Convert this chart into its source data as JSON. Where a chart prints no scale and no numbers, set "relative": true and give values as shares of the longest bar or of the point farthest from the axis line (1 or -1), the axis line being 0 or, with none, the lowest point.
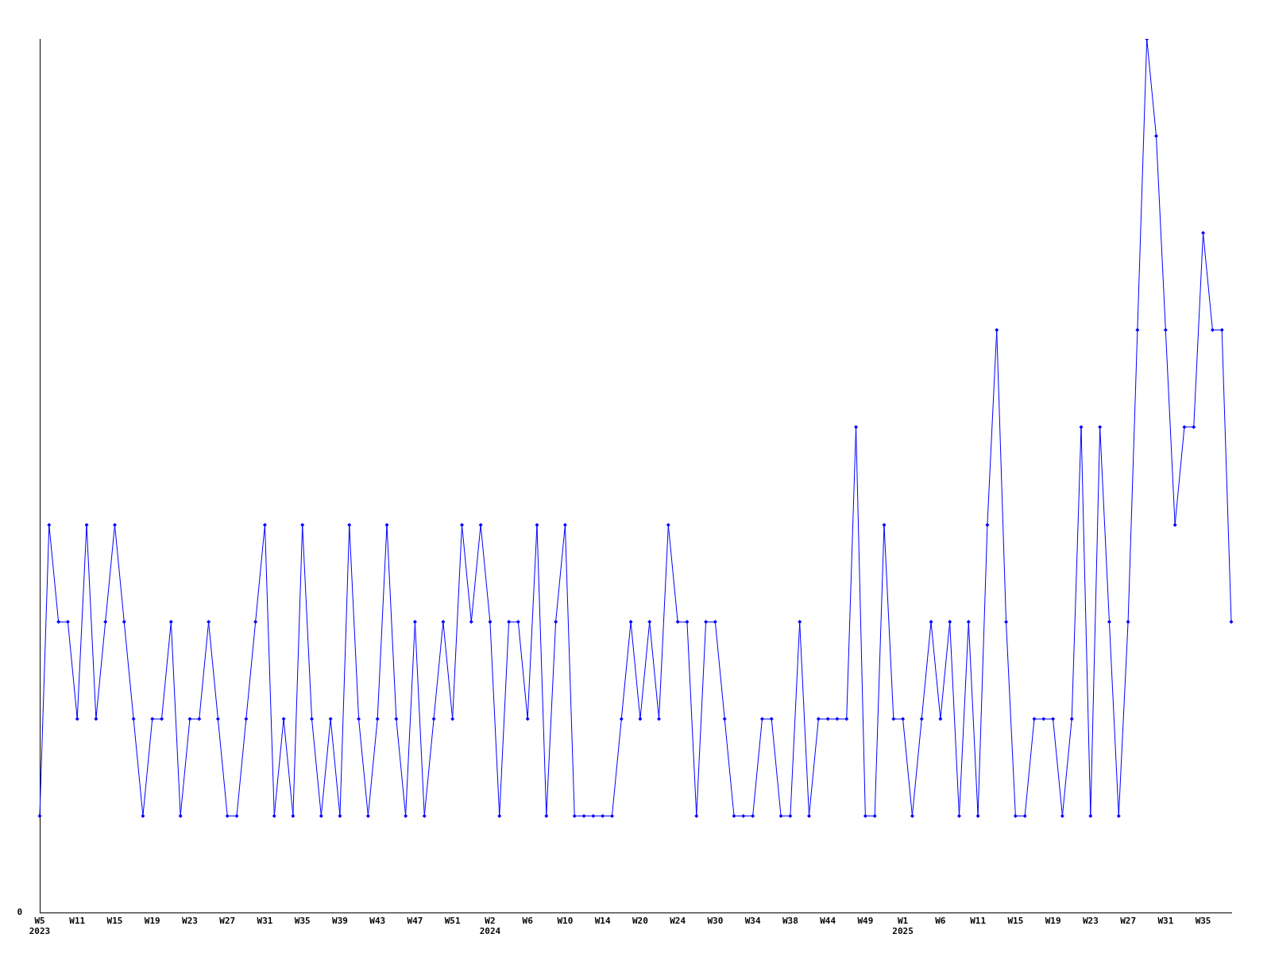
{
  "chart_data": {
    "type": "line",
    "relative": true,
    "color": "#0000ff",
    "marker": "diamond",
    "line_style": "solid",
    "grid": false,
    "legend": false,
    "annotations": [
      "0"
    ],
    "categories": [
      "W5\n2023",
      null,
      null,
      null,
      "W11",
      null,
      null,
      null,
      "W15",
      null,
      null,
      null,
      "W19",
      null,
      null,
      null,
      "W23",
      null,
      null,
      null,
      "W27",
      null,
      null,
      null,
      "W31",
      null,
      null,
      null,
      "W35",
      null,
      null,
      null,
      "W39",
      null,
      null,
      null,
      "W43",
      null,
      null,
      null,
      "W47",
      null,
      null,
      null,
      "W51",
      null,
      null,
      null,
      "W2\n2024",
      null,
      null,
      null,
      "W6",
      null,
      null,
      null,
      "W10",
      null,
      null,
      null,
      "W14",
      null,
      null,
      null,
      "W20",
      null,
      null,
      null,
      "W24",
      null,
      null,
      null,
      "W30",
      null,
      null,
      null,
      "W34",
      null,
      null,
      null,
      "W38",
      null,
      null,
      null,
      "W44",
      null,
      null,
      null,
      "W49",
      null,
      null,
      null,
      "W1\n2025",
      null,
      null,
      null,
      "W6",
      null,
      null,
      null,
      "W11",
      null,
      null,
      null,
      "W15",
      null,
      null,
      null,
      "W19",
      null,
      null,
      null,
      "W23",
      null,
      null,
      null,
      "W27",
      null,
      null,
      null,
      "W31",
      null,
      null,
      null,
      "W35",
      null,
      null,
      null
    ],
    "values": [
      0.111,
      0.444,
      0.333,
      0.333,
      0.222,
      0.444,
      0.222,
      0.333,
      0.444,
      0.333,
      0.222,
      0.111,
      0.222,
      0.222,
      0.333,
      0.111,
      0.222,
      0.222,
      0.333,
      0.222,
      0.111,
      0.111,
      0.222,
      0.333,
      0.444,
      0.111,
      0.222,
      0.111,
      0.444,
      0.222,
      0.111,
      0.222,
      0.111,
      0.444,
      0.222,
      0.111,
      0.222,
      0.444,
      0.222,
      0.111,
      0.333,
      0.111,
      0.222,
      0.333,
      0.222,
      0.444,
      0.333,
      0.444,
      0.333,
      0.111,
      0.333,
      0.333,
      0.222,
      0.444,
      0.111,
      0.333,
      0.444,
      0.111,
      0.111,
      0.111,
      0.111,
      0.111,
      0.222,
      0.333,
      0.222,
      0.333,
      0.222,
      0.444,
      0.333,
      0.333,
      0.111,
      0.333,
      0.333,
      0.222,
      0.111,
      0.111,
      0.111,
      0.222,
      0.222,
      0.111,
      0.111,
      0.333,
      0.111,
      0.222,
      0.222,
      0.222,
      0.222,
      0.556,
      0.111,
      0.111,
      0.444,
      0.222,
      0.222,
      0.111,
      0.222,
      0.333,
      0.222,
      0.333,
      0.111,
      0.333,
      0.111,
      0.444,
      0.667,
      0.333,
      0.111,
      0.111,
      0.222,
      0.222,
      0.222,
      0.111,
      0.222,
      0.556,
      0.111,
      0.556,
      0.333,
      0.111,
      0.333,
      0.667,
      1,
      0.889,
      0.667,
      0.444,
      0.556,
      0.556,
      0.778,
      0.667,
      0.667,
      0.333
    ]
  }
}
